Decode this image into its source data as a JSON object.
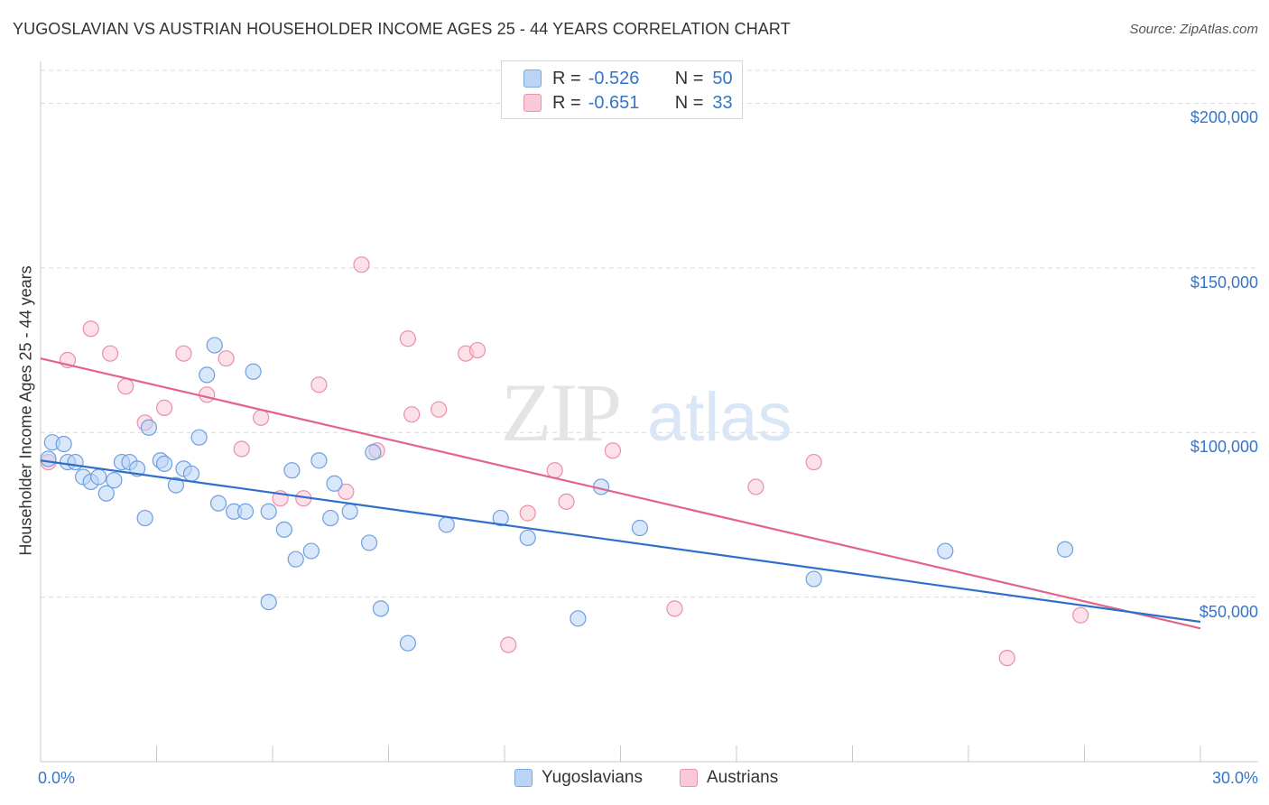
{
  "header": {
    "title": "YUGOSLAVIAN VS AUSTRIAN HOUSEHOLDER INCOME AGES 25 - 44 YEARS CORRELATION CHART",
    "source": "Source: ZipAtlas.com"
  },
  "legend": {
    "rows": [
      {
        "r_label": "R =",
        "r_value": "-0.526",
        "n_label": "N =",
        "n_value": "50"
      },
      {
        "r_label": "R =",
        "r_value": "-0.651",
        "n_label": "N =",
        "n_value": "33"
      }
    ]
  },
  "watermark": {
    "part1": "ZIP",
    "part2": "atlas"
  },
  "colors": {
    "blue_fill": "#b9d4f5",
    "blue_stroke": "#6f9fdf",
    "blue_line": "#2f6fcc",
    "pink_fill": "#f9c9d7",
    "pink_stroke": "#eb8eaa",
    "pink_line": "#e2648e",
    "tick_label": "#3575c9"
  },
  "chart_data": {
    "type": "scatter",
    "title": "YUGOSLAVIAN VS AUSTRIAN HOUSEHOLDER INCOME AGES 25 - 44 YEARS CORRELATION CHART",
    "xlabel": "",
    "ylabel": "Householder Income Ages 25 - 44 years",
    "xlim": [
      0,
      30
    ],
    "ylim": [
      0,
      210000
    ],
    "x_tick_labels": [
      "0.0%",
      "30.0%"
    ],
    "y_ticks": [
      50000,
      100000,
      150000,
      200000
    ],
    "y_tick_labels": [
      "$50,000",
      "$100,000",
      "$150,000",
      "$200,000"
    ],
    "grid": true,
    "legend_position": "bottom",
    "series": [
      {
        "name": "Yugoslavians",
        "trend": [
          [
            0,
            91500
          ],
          [
            30,
            42500
          ]
        ],
        "points": [
          [
            0.3,
            97000
          ],
          [
            0.6,
            96500
          ],
          [
            0.7,
            91000
          ],
          [
            0.9,
            91000
          ],
          [
            1.1,
            86500
          ],
          [
            1.3,
            85000
          ],
          [
            1.5,
            86500
          ],
          [
            1.7,
            81500
          ],
          [
            1.9,
            85500
          ],
          [
            2.1,
            91000
          ],
          [
            2.3,
            91000
          ],
          [
            2.5,
            89000
          ],
          [
            2.7,
            74000
          ],
          [
            2.8,
            101500
          ],
          [
            3.1,
            91500
          ],
          [
            3.2,
            90500
          ],
          [
            3.5,
            84000
          ],
          [
            3.7,
            89000
          ],
          [
            3.9,
            87500
          ],
          [
            4.1,
            98500
          ],
          [
            4.3,
            117500
          ],
          [
            4.5,
            126500
          ],
          [
            4.6,
            78500
          ],
          [
            5.0,
            76000
          ],
          [
            5.3,
            76000
          ],
          [
            5.5,
            118500
          ],
          [
            5.9,
            76000
          ],
          [
            5.9,
            48500
          ],
          [
            6.3,
            70500
          ],
          [
            6.5,
            88500
          ],
          [
            6.6,
            61500
          ],
          [
            7.0,
            64000
          ],
          [
            7.2,
            91500
          ],
          [
            7.5,
            74000
          ],
          [
            7.6,
            84500
          ],
          [
            8.0,
            76000
          ],
          [
            8.5,
            66500
          ],
          [
            8.6,
            94000
          ],
          [
            8.8,
            46500
          ],
          [
            9.5,
            36000
          ],
          [
            10.5,
            72000
          ],
          [
            11.9,
            74000
          ],
          [
            12.6,
            68000
          ],
          [
            13.9,
            43500
          ],
          [
            14.5,
            83500
          ],
          [
            15.5,
            71000
          ],
          [
            20.0,
            55500
          ],
          [
            23.4,
            64000
          ],
          [
            26.5,
            64500
          ],
          [
            0.2,
            92000
          ]
        ]
      },
      {
        "name": "Austrians",
        "trend": [
          [
            0,
            122500
          ],
          [
            30,
            40500
          ]
        ],
        "points": [
          [
            0.2,
            91000
          ],
          [
            0.7,
            122000
          ],
          [
            1.3,
            131500
          ],
          [
            1.8,
            124000
          ],
          [
            2.2,
            114000
          ],
          [
            2.7,
            103000
          ],
          [
            3.2,
            107500
          ],
          [
            3.7,
            124000
          ],
          [
            4.3,
            111500
          ],
          [
            4.8,
            122500
          ],
          [
            5.2,
            95000
          ],
          [
            5.7,
            104500
          ],
          [
            6.2,
            80000
          ],
          [
            6.8,
            80000
          ],
          [
            7.2,
            114500
          ],
          [
            7.9,
            82000
          ],
          [
            8.3,
            151000
          ],
          [
            8.7,
            94500
          ],
          [
            9.5,
            128500
          ],
          [
            9.6,
            105500
          ],
          [
            10.3,
            107000
          ],
          [
            11.0,
            124000
          ],
          [
            11.3,
            125000
          ],
          [
            12.1,
            35500
          ],
          [
            12.6,
            75500
          ],
          [
            13.3,
            88500
          ],
          [
            13.6,
            79000
          ],
          [
            14.8,
            94500
          ],
          [
            16.4,
            46500
          ],
          [
            18.5,
            83500
          ],
          [
            20.0,
            91000
          ],
          [
            25.0,
            31500
          ],
          [
            26.9,
            44500
          ]
        ]
      }
    ]
  },
  "bottom_legend": {
    "item1": "Yugoslavians",
    "item2": "Austrians"
  }
}
